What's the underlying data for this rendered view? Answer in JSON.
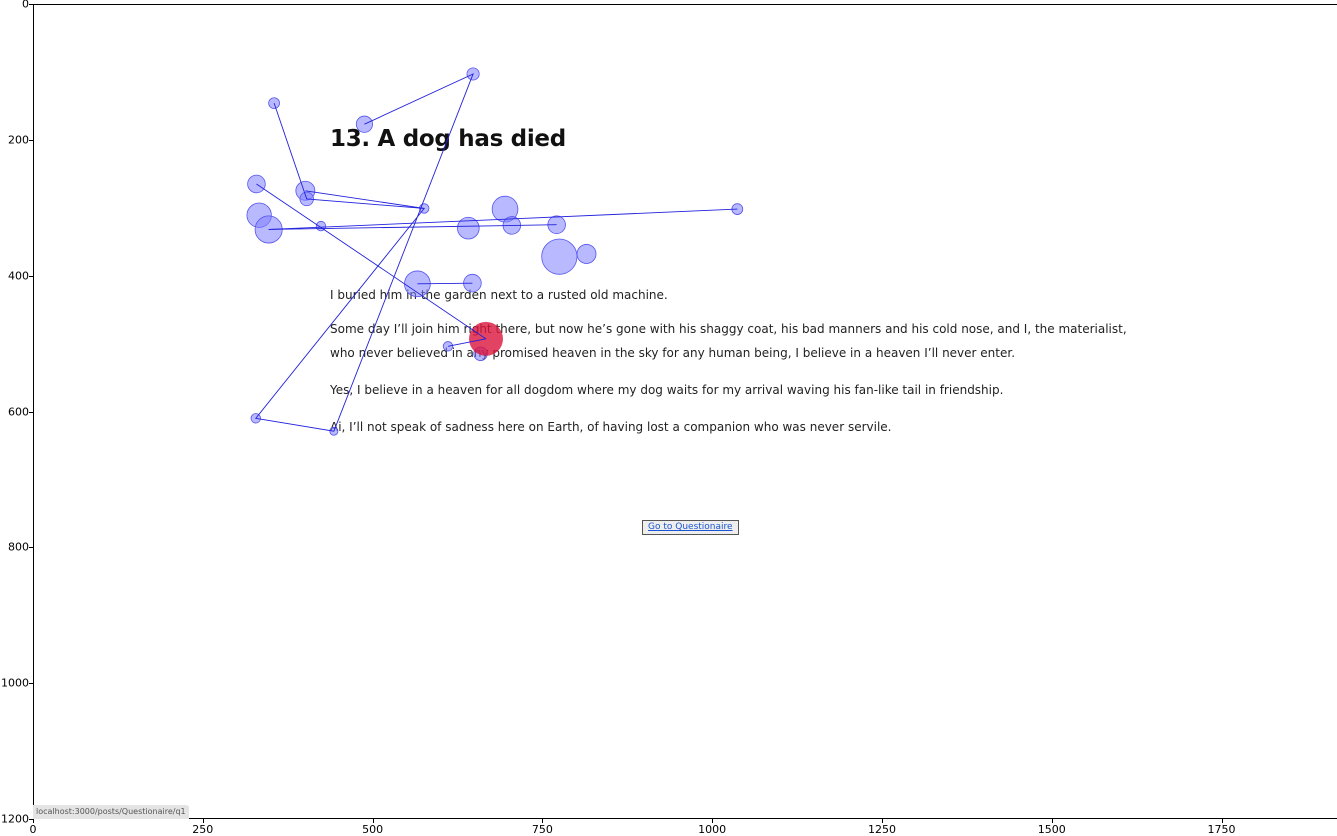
{
  "page": {
    "title": "13. A dog has died",
    "paragraphs": [
      "I buried him in the garden next to a rusted old machine.",
      "Some day I’ll join him right there, but now he’s gone with his shaggy coat, his bad manners and his cold nose, and I, the materialist,",
      "who never believed in any promised heaven in the sky for any human being, I believe in a heaven I’ll never enter.",
      "Yes, I believe in a heaven for all dogdom where my dog waits for my arrival waving his fan-like tail in friendship.",
      "Ai, I’ll not speak of sadness here on Earth, of having lost a companion who was never servile."
    ],
    "button_label": "Go to Questionaire",
    "status_url": "localhost:3000/posts/Questionaire/q1"
  },
  "axes": {
    "x_ticks": [
      "0",
      "250",
      "500",
      "750",
      "1000",
      "1250",
      "1500",
      "1750"
    ],
    "y_ticks": [
      "0",
      "200",
      "400",
      "600",
      "800",
      "1000",
      "1200"
    ],
    "x_range": [
      0,
      1920
    ],
    "y_range": [
      0,
      1200
    ]
  },
  "colors": {
    "fixation_fill": "#8080ff",
    "fixation_stroke": "#5555ee",
    "saccade": "#2222dd",
    "last_fixation": "#dc143c"
  },
  "chart_data": {
    "type": "scatter",
    "description_free": true,
    "fixations": [
      {
        "x": 488,
        "y": 177,
        "r": 12
      },
      {
        "x": 648,
        "y": 103,
        "r": 9
      },
      {
        "x": 355,
        "y": 146,
        "r": 8
      },
      {
        "x": 401,
        "y": 275,
        "r": 14
      },
      {
        "x": 403,
        "y": 287,
        "r": 10
      },
      {
        "x": 576,
        "y": 301,
        "r": 7
      },
      {
        "x": 329,
        "y": 265,
        "r": 13
      },
      {
        "x": 333,
        "y": 311,
        "r": 18
      },
      {
        "x": 347,
        "y": 332,
        "r": 20
      },
      {
        "x": 424,
        "y": 327,
        "r": 7
      },
      {
        "x": 695,
        "y": 302,
        "r": 19
      },
      {
        "x": 641,
        "y": 330,
        "r": 16
      },
      {
        "x": 705,
        "y": 326,
        "r": 13
      },
      {
        "x": 771,
        "y": 325,
        "r": 13
      },
      {
        "x": 1037,
        "y": 302,
        "r": 8
      },
      {
        "x": 775,
        "y": 372,
        "r": 26
      },
      {
        "x": 815,
        "y": 368,
        "r": 14
      },
      {
        "x": 566,
        "y": 412,
        "r": 19
      },
      {
        "x": 647,
        "y": 411,
        "r": 13
      },
      {
        "x": 328,
        "y": 610,
        "r": 7
      },
      {
        "x": 443,
        "y": 629,
        "r": 6
      },
      {
        "x": 611,
        "y": 504,
        "r": 7
      },
      {
        "x": 659,
        "y": 515,
        "r": 10
      }
    ],
    "scanpath": [
      [
        488,
        177
      ],
      [
        648,
        103
      ],
      [
        443,
        629
      ],
      [
        328,
        610
      ],
      [
        576,
        301
      ],
      [
        403,
        287
      ],
      [
        355,
        146
      ]
    ],
    "scanpath_b": [
      [
        401,
        275
      ],
      [
        576,
        301
      ]
    ],
    "scanpath_c": [
      [
        329,
        265
      ],
      [
        667,
        493
      ]
    ],
    "scanpath_d": [
      [
        347,
        332
      ],
      [
        771,
        325
      ]
    ],
    "scanpath_e": [
      [
        347,
        332
      ],
      [
        1037,
        302
      ]
    ],
    "scanpath_f": [
      [
        566,
        412
      ],
      [
        647,
        411
      ]
    ],
    "scanpath_g": [
      [
        611,
        504
      ],
      [
        667,
        493
      ]
    ],
    "last_fixation": {
      "x": 667,
      "y": 493,
      "r": 25
    }
  }
}
